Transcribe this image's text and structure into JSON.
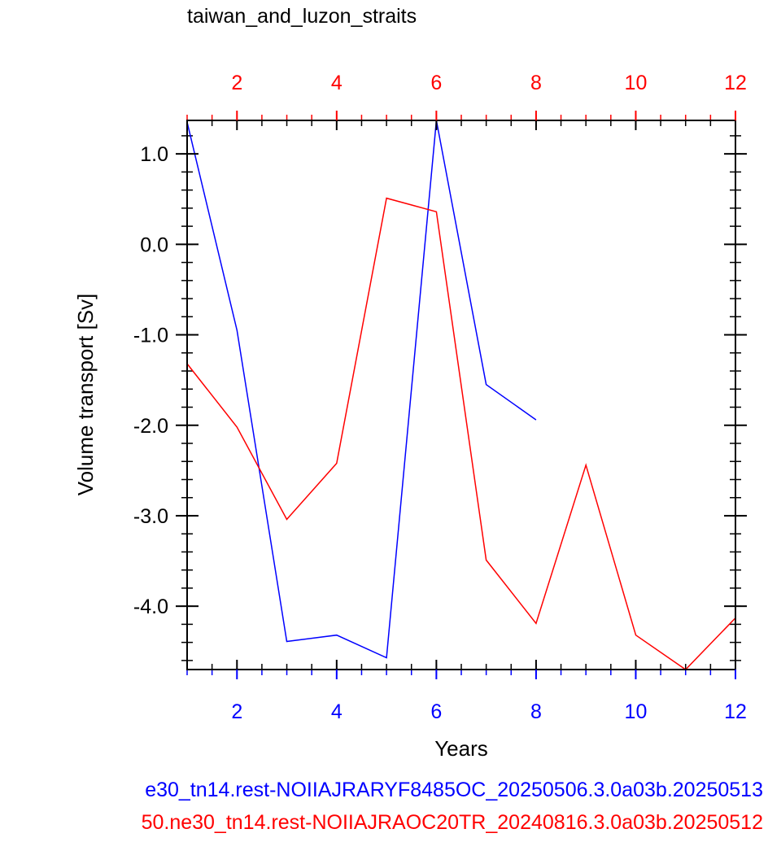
{
  "chart_data": {
    "type": "line",
    "title": "taiwan_and_luzon_straits",
    "xlabel": "Years",
    "ylabel": "Volume transport [Sv]",
    "xlim": [
      1,
      12
    ],
    "ylim": [
      -4.7,
      1.37
    ],
    "bottom_axis": {
      "ticks": [
        2,
        4,
        6,
        8,
        10,
        12
      ],
      "color": "#0000ff"
    },
    "top_axis": {
      "ticks": [
        2,
        4,
        6,
        8,
        10,
        12
      ],
      "color": "#ff0000"
    },
    "y_ticks": [
      1.0,
      0.0,
      -1.0,
      -2.0,
      -3.0,
      -4.0
    ],
    "y_tick_labels": [
      "1.0",
      "0.0",
      "-1.0",
      "-2.0",
      "-3.0",
      "-4.0"
    ],
    "grid": false,
    "series": [
      {
        "name": "e30_tn14.rest-NOIIAJRARYF8485OC_20250506.3.0a03b.20250513",
        "color": "#0000ff",
        "x": [
          1,
          2,
          3,
          4,
          5,
          6,
          7,
          8
        ],
        "y": [
          1.35,
          -0.95,
          -4.39,
          -4.32,
          -4.57,
          1.37,
          -1.55,
          -1.94
        ]
      },
      {
        "name": "50.ne30_tn14.rest-NOIIAJRAOC20TR_20240816.3.0a03b.20250512",
        "color": "#ff0000",
        "x": [
          1,
          2,
          3,
          4,
          5,
          6,
          7,
          8,
          9,
          10,
          11,
          12
        ],
        "y": [
          -1.32,
          -2.02,
          -3.04,
          -2.42,
          0.51,
          0.36,
          -3.49,
          -4.19,
          -2.44,
          -4.32,
          -4.7,
          -4.13
        ]
      }
    ]
  }
}
